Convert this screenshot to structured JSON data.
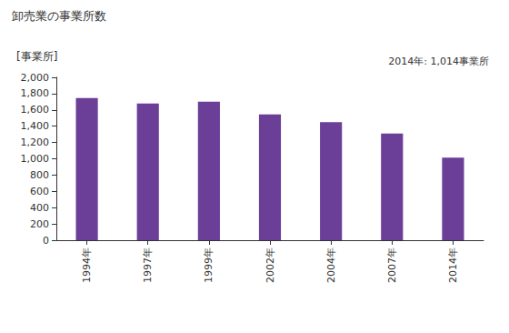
{
  "chart_data": {
    "type": "bar",
    "title": "卸売業の事業所数",
    "y_label": "[事業所]",
    "annotation": "2014年: 1,014事業所",
    "categories": [
      "1994年",
      "1997年",
      "1999年",
      "2002年",
      "2004年",
      "2007年",
      "2014年"
    ],
    "values": [
      1745,
      1680,
      1700,
      1545,
      1450,
      1310,
      1014
    ],
    "color": "#6b3f98",
    "ylim": [
      0,
      2000
    ],
    "yticks": [
      0,
      200,
      400,
      600,
      800,
      {
        "value": 1000,
        "label": "1,000"
      },
      {
        "value": 1200,
        "label": "1,200"
      },
      {
        "value": 1400,
        "label": "1,400"
      },
      {
        "value": 1600,
        "label": "1,600"
      },
      {
        "value": 1800,
        "label": "1,800"
      },
      {
        "value": 2000,
        "label": "2,000"
      }
    ],
    "grid": false
  }
}
